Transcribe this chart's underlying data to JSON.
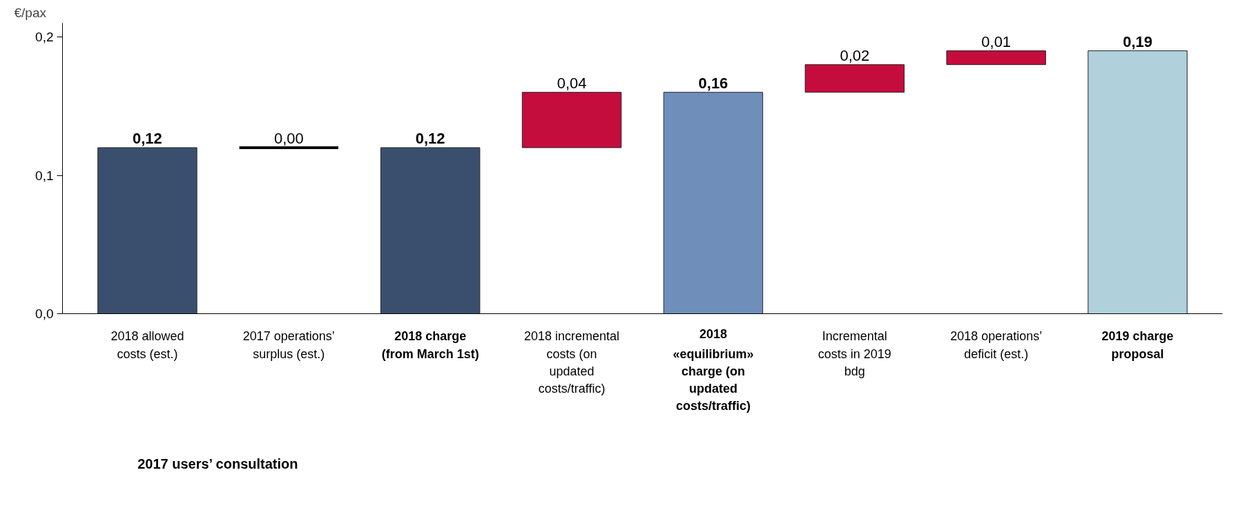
{
  "chart_data": {
    "type": "bar",
    "ylabel": "€/pax",
    "categories": [
      "2018 allowed costs (est.)",
      "2017 operations’ surplus (est.)",
      "2018 charge (from March 1st)",
      "2018 incremental costs (on updated costs/traffic)",
      "2018 «equilibrium» charge (on updated costs/traffic)",
      "Incremental costs in 2019 bdg",
      "2018 operations’ deficit (est.)",
      "2019 charge proposal"
    ],
    "values": [
      0.12,
      0.0,
      0.12,
      0.04,
      0.16,
      0.02,
      0.01,
      0.19
    ],
    "base": [
      0,
      0.12,
      0,
      0.12,
      0,
      0.16,
      0.18,
      0
    ],
    "colors": [
      "#3a4f6e",
      "#000000",
      "#3a4f6e",
      "#c40d3c",
      "#6f8fba",
      "#c40d3c",
      "#c40d3c",
      "#b0d1dc"
    ],
    "value_labels": [
      "0,12",
      "0,00",
      "0,12",
      "0,04",
      "0,16",
      "0,02",
      "0,01",
      "0,19"
    ],
    "ylim": [
      0,
      0.21
    ],
    "yticks": [
      {
        "value": 0,
        "label": "0,0"
      },
      {
        "value": 0.1,
        "label": "0,1"
      },
      {
        "value": 0.2,
        "label": "0,2"
      }
    ],
    "grid": false,
    "annotations": [
      "2017 users’ consultation"
    ]
  }
}
